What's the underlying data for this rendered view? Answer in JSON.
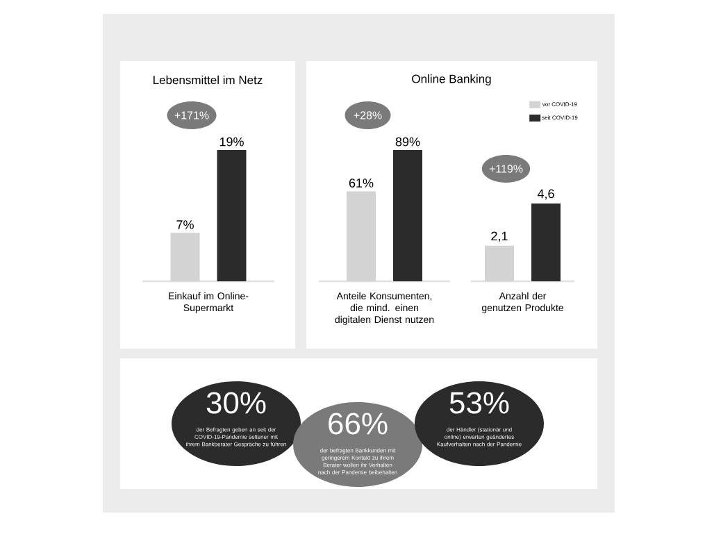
{
  "chart_data": [
    {
      "type": "bar",
      "title": "Lebensmittel im Netz",
      "categories": [
        "Einkauf im Online-Supermarkt"
      ],
      "series": [
        {
          "color": "#d3d3d3",
          "values": [
            7
          ],
          "value_labels": [
            "7%"
          ]
        },
        {
          "color": "#2b2b2b",
          "values": [
            19
          ],
          "value_labels": [
            "19%"
          ]
        }
      ],
      "annotations": [
        "+171%"
      ]
    },
    {
      "type": "bar",
      "title": "Online Banking",
      "categories": [
        "Anteile Konsumenten, die mind. einen digitalen Dienst nutzen"
      ],
      "legend": "top right",
      "series": [
        {
          "name": "vor COVID-19",
          "color": "#d3d3d3",
          "values": [
            61
          ],
          "value_labels": [
            "61%"
          ]
        },
        {
          "name": "seit COVID-19",
          "color": "#2b2b2b",
          "values": [
            89
          ],
          "value_labels": [
            "89%"
          ]
        }
      ],
      "annotations": [
        "+28%"
      ]
    },
    {
      "type": "bar",
      "categories": [
        "Anzahl der genutzen Produkte"
      ],
      "series": [
        {
          "color": "#d3d3d3",
          "values": [
            2.1
          ],
          "value_labels": [
            "2,1"
          ]
        },
        {
          "color": "#2b2b2b",
          "values": [
            4.6
          ],
          "value_labels": [
            "4,6"
          ]
        }
      ],
      "annotations": [
        "+119%"
      ]
    },
    {
      "type": "other",
      "colors": [
        "#2b2b2b",
        "#7a7a7a",
        "#2b2b2b"
      ],
      "annotations": [
        "30%",
        "der Befragten geben an seit der COVID-19-Pandemie seltener mit ihrem Bankberater Gespräche zu führen",
        "66%",
        "der befragten Bankkunden mit geringerem Kontakt zu ihrem Berater wollen ihr Verhalten nach der Pandemie beibehalten",
        "53%",
        "der Händler (stationär und online) erwarten geändertes Kaufverhalten nach der Pandemie"
      ]
    }
  ]
}
